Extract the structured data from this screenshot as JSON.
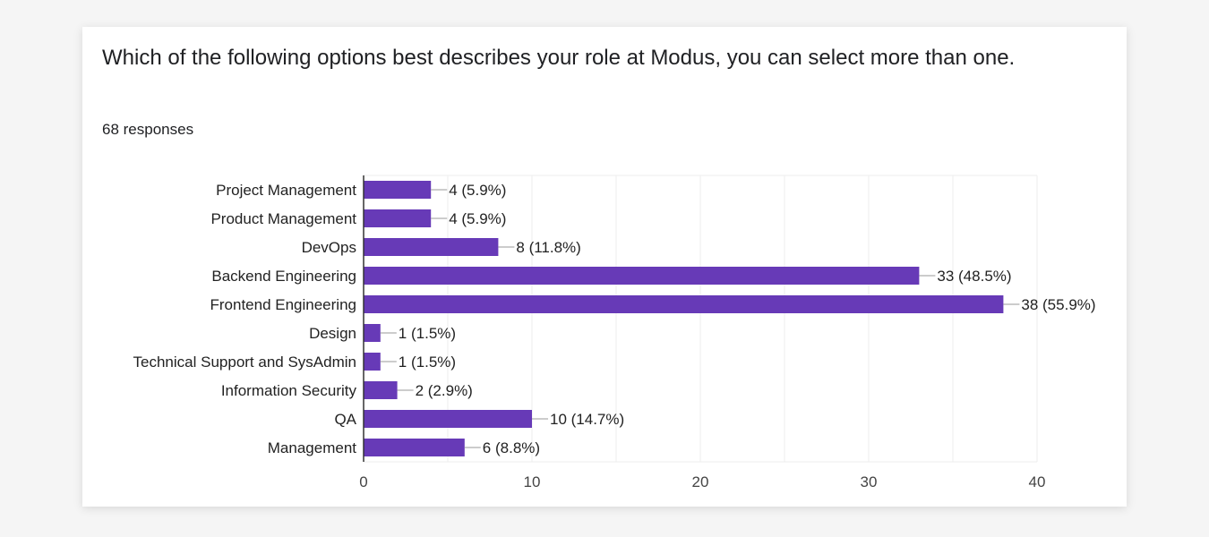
{
  "question": {
    "title": "Which of the following options best describes your role at Modus, you can select more than one.",
    "responses": "68 responses"
  },
  "colors": {
    "bar": "#673ab7",
    "grid": "#eeeeee",
    "axis": "#333333"
  },
  "chart_data": {
    "type": "bar",
    "orientation": "horizontal",
    "categories": [
      "Project Management",
      "Product Management",
      "DevOps",
      "Backend Engineering",
      "Frontend Engineering",
      "Design",
      "Technical Support and SysAdmin",
      "Information Security",
      "QA",
      "Management"
    ],
    "values": [
      4,
      4,
      8,
      33,
      38,
      1,
      1,
      2,
      10,
      6
    ],
    "labels": [
      "4 (5.9%)",
      "4 (5.9%)",
      "8 (11.8%)",
      "33 (48.5%)",
      "38 (55.9%)",
      "1 (1.5%)",
      "1 (1.5%)",
      "2 (2.9%)",
      "10 (14.7%)",
      "6 (8.8%)"
    ],
    "xlim": [
      0,
      40
    ],
    "xticks": [
      0,
      10,
      20,
      30,
      40
    ],
    "grid": true,
    "legend": false
  }
}
